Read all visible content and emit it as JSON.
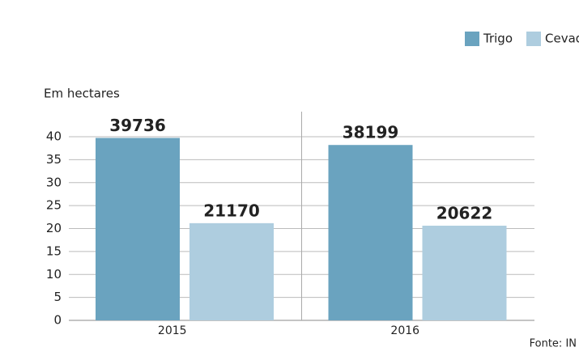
{
  "chart_data": {
    "type": "bar",
    "subtitle": "Em hectares",
    "source": "Fonte: IN",
    "categories": [
      "2015",
      "2016"
    ],
    "series": [
      {
        "name": "Trigo",
        "color": "#6aa3bf",
        "values": [
          39.736,
          38.199
        ],
        "value_labels": [
          "39736",
          "38199"
        ]
      },
      {
        "name": "Cevad",
        "color": "#aecddf",
        "values": [
          21.17,
          20.622
        ],
        "value_labels": [
          "21170",
          "20622"
        ]
      }
    ],
    "ylim": [
      0,
      40
    ],
    "yticks": [
      0,
      5,
      10,
      15,
      20,
      25,
      30,
      35,
      40
    ],
    "grid": true,
    "legend": "top-right"
  }
}
